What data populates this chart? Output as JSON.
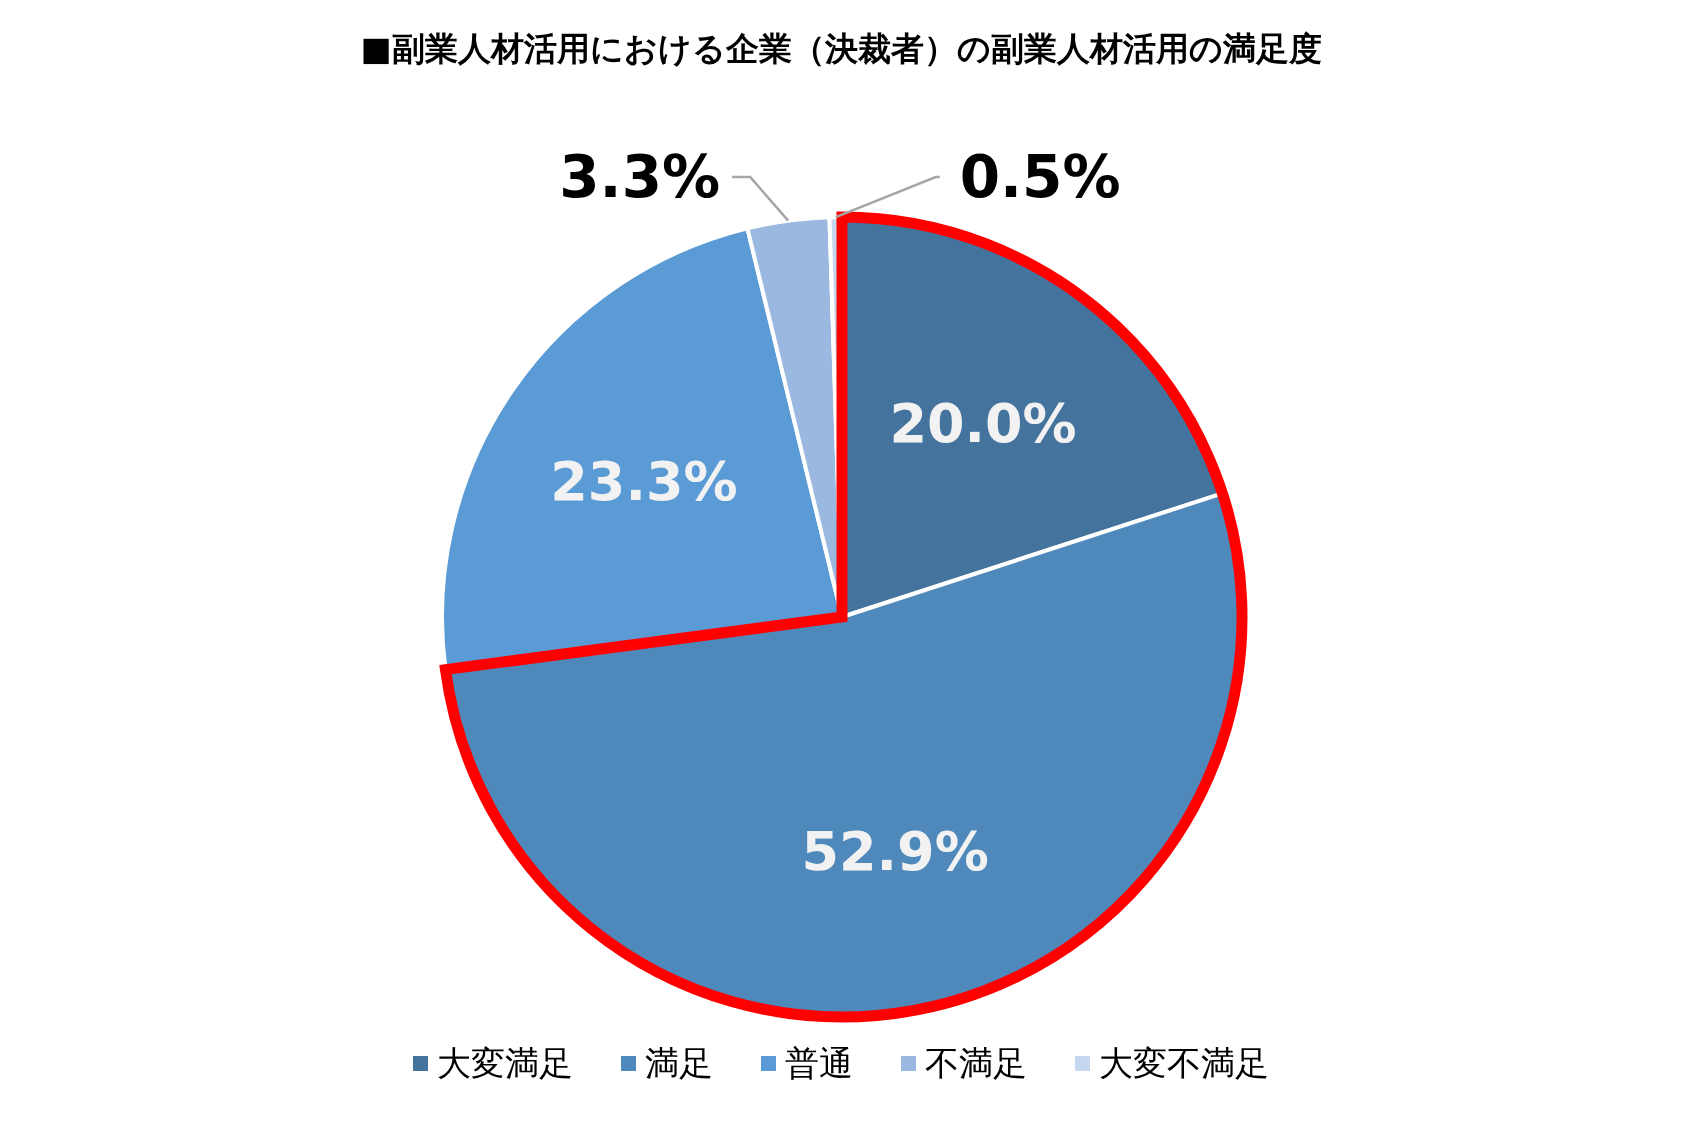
{
  "chart_data": {
    "type": "pie",
    "title": "■副業人材活用における企業（決裁者）の副業人材活用の満足度",
    "categories": [
      "大変満足",
      "満足",
      "普通",
      "不満足",
      "大変不満足"
    ],
    "values": [
      20.0,
      52.9,
      23.3,
      3.3,
      0.5
    ],
    "colors": [
      "#44739e",
      "#4f89bc",
      "#5b9bd5",
      "#9ab8e0",
      "#c5d7ee"
    ],
    "value_labels": [
      "20.0%",
      "52.9%",
      "23.3%",
      "3.3%",
      "0.5%"
    ],
    "legend": "bottom"
  }
}
